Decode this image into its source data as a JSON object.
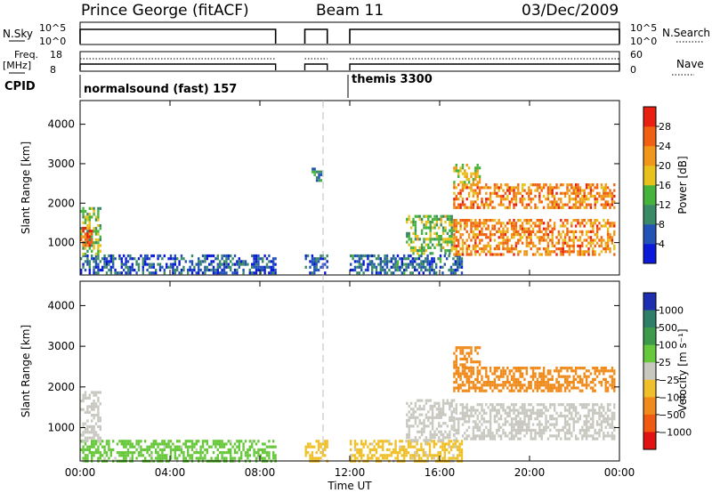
{
  "header": {
    "station": "Prince George (fitACF)",
    "beam": "Beam 11",
    "date": "03/Dec/2009"
  },
  "strip": {
    "nsky_label": "N.Sky",
    "nsky_ticks": [
      "10^5",
      "10^0"
    ],
    "nsearch_label": "N.Search",
    "nsearch_ticks": [
      "10^5",
      "10^0"
    ],
    "freq_label": "Freq.",
    "freq_unit": "[MHz]",
    "freq_ticks": [
      "18",
      "8"
    ],
    "nave_label": "Nave",
    "nave_ticks": [
      "60",
      "0"
    ],
    "cpid_label": "CPID",
    "cpid_1": "normalsound (fast) 157",
    "cpid_2": "themis 3300"
  },
  "colors": {
    "power_scale": [
      "#0a1ad8",
      "#2453b8",
      "#3a8a68",
      "#46b43c",
      "#e8c21c",
      "#f09618",
      "#f06010",
      "#e82010"
    ],
    "velocity_scale": [
      "#1e2eb0",
      "#2f7e68",
      "#3d9a4a",
      "#66c83a",
      "#c8c8c0",
      "#f0c02a",
      "#f08a1a",
      "#f05a10",
      "#e01212"
    ]
  },
  "chart_data": [
    {
      "type": "heatmap",
      "panel": "power",
      "xlabel": "",
      "ylabel": "Slant Range [km]",
      "xlim": [
        "00:00",
        "00:00"
      ],
      "ylim": [
        180,
        4600
      ],
      "yticks": [
        1000,
        2000,
        3000,
        4000
      ],
      "colorbar": {
        "label": "Power [dB]",
        "ticks": [
          "4",
          "8",
          "12",
          "16",
          "20",
          "24",
          "28"
        ],
        "range": [
          0,
          30
        ]
      },
      "regions": [
        {
          "t0": 0.0,
          "t1": 8.7,
          "r0": 200,
          "r1": 700,
          "value": 6
        },
        {
          "t0": 0.0,
          "t1": 0.9,
          "r0": 700,
          "r1": 1900,
          "value": 14
        },
        {
          "t0": 0.0,
          "t1": 0.5,
          "r0": 900,
          "r1": 1400,
          "value": 26
        },
        {
          "t0": 10.0,
          "t1": 11.0,
          "r0": 200,
          "r1": 700,
          "value": 6
        },
        {
          "t0": 10.3,
          "t1": 10.7,
          "r0": 2600,
          "r1": 2900,
          "value": 8
        },
        {
          "t0": 12.0,
          "t1": 17.0,
          "r0": 200,
          "r1": 700,
          "value": 7
        },
        {
          "t0": 14.5,
          "t1": 16.6,
          "r0": 700,
          "r1": 1700,
          "value": 14
        },
        {
          "t0": 16.6,
          "t1": 23.8,
          "r0": 700,
          "r1": 1600,
          "value": 22
        },
        {
          "t0": 16.6,
          "t1": 23.8,
          "r0": 1900,
          "r1": 2500,
          "value": 22
        },
        {
          "t0": 16.6,
          "t1": 17.8,
          "r0": 2500,
          "r1": 3000,
          "value": 17
        }
      ]
    },
    {
      "type": "heatmap",
      "panel": "velocity",
      "xlabel": "Time UT",
      "ylabel": "Slant Range [km]",
      "xlim": [
        "00:00",
        "00:00"
      ],
      "xticks": [
        "00:00",
        "04:00",
        "08:00",
        "12:00",
        "16:00",
        "20:00",
        "00:00"
      ],
      "ylim": [
        180,
        4600
      ],
      "yticks": [
        1000,
        2000,
        3000,
        4000
      ],
      "colorbar": {
        "label": "Velocity [m s⁻¹]",
        "ticks": [
          "1000",
          "500",
          "100",
          "25",
          "−25",
          "−100",
          "−500",
          "−1000"
        ]
      },
      "regions": [
        {
          "t0": 0.0,
          "t1": 8.7,
          "r0": 200,
          "r1": 700,
          "value": 40
        },
        {
          "t0": 0.0,
          "t1": 0.9,
          "r0": 700,
          "r1": 1900,
          "value": 0
        },
        {
          "t0": 10.0,
          "t1": 11.0,
          "r0": 200,
          "r1": 700,
          "value": -40
        },
        {
          "t0": 12.0,
          "t1": 17.0,
          "r0": 200,
          "r1": 700,
          "value": -40
        },
        {
          "t0": 14.5,
          "t1": 16.6,
          "r0": 700,
          "r1": 1700,
          "value": 0
        },
        {
          "t0": 16.6,
          "t1": 23.8,
          "r0": 700,
          "r1": 1600,
          "value": 0
        },
        {
          "t0": 16.6,
          "t1": 23.8,
          "r0": 1900,
          "r1": 2500,
          "value": -300
        },
        {
          "t0": 16.6,
          "t1": 17.8,
          "r0": 2500,
          "r1": 3000,
          "value": -300
        }
      ]
    }
  ]
}
